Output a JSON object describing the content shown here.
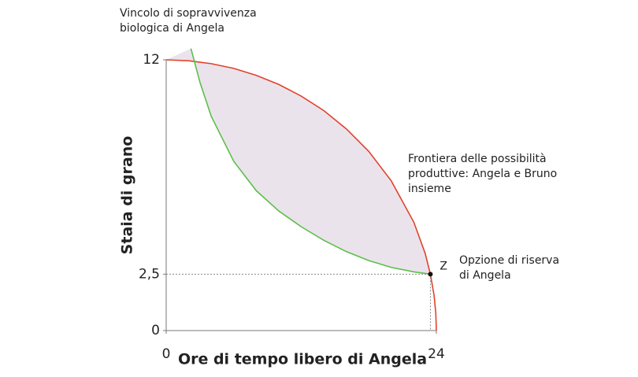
{
  "chart_data": {
    "type": "line",
    "x_label": "Ore di tempo libero di Angela",
    "y_label": "Staia di grano",
    "xlim": [
      0,
      24
    ],
    "ylim": [
      0,
      12
    ],
    "xticks": [
      0,
      24
    ],
    "yticks": [
      0,
      {
        "value": 2.5,
        "label": "2,5"
      },
      12
    ],
    "series": [
      {
        "name": "Frontiera delle possibilità produttive: Angela e Bruno insieme",
        "color": "#e0432b",
        "x": [
          0,
          2,
          4,
          6,
          8,
          10,
          12,
          14,
          16,
          18,
          20,
          22,
          23,
          23.47,
          23.8,
          23.95,
          24
        ],
        "values": [
          12,
          11.96,
          11.83,
          11.62,
          11.31,
          10.91,
          10.39,
          9.75,
          8.94,
          7.94,
          6.63,
          4.8,
          3.43,
          2.5,
          1.55,
          0.77,
          0
        ]
      },
      {
        "name": "Vincolo di sopravvivenza biologica di Angela",
        "color": "#5cbf4a",
        "x": [
          2.2,
          3,
          4,
          6,
          8,
          10,
          12,
          14,
          16,
          18,
          20,
          22,
          23.47
        ],
        "values": [
          12.5,
          11,
          9.5,
          7.5,
          6.2,
          5.3,
          4.6,
          4,
          3.5,
          3.1,
          2.8,
          2.6,
          2.5
        ]
      }
    ],
    "points": [
      {
        "label": "Z",
        "note": "Opzione di riserva di Angela",
        "x": 23.47,
        "y": 2.5
      }
    ],
    "fill_color": "#ebe3ec"
  }
}
